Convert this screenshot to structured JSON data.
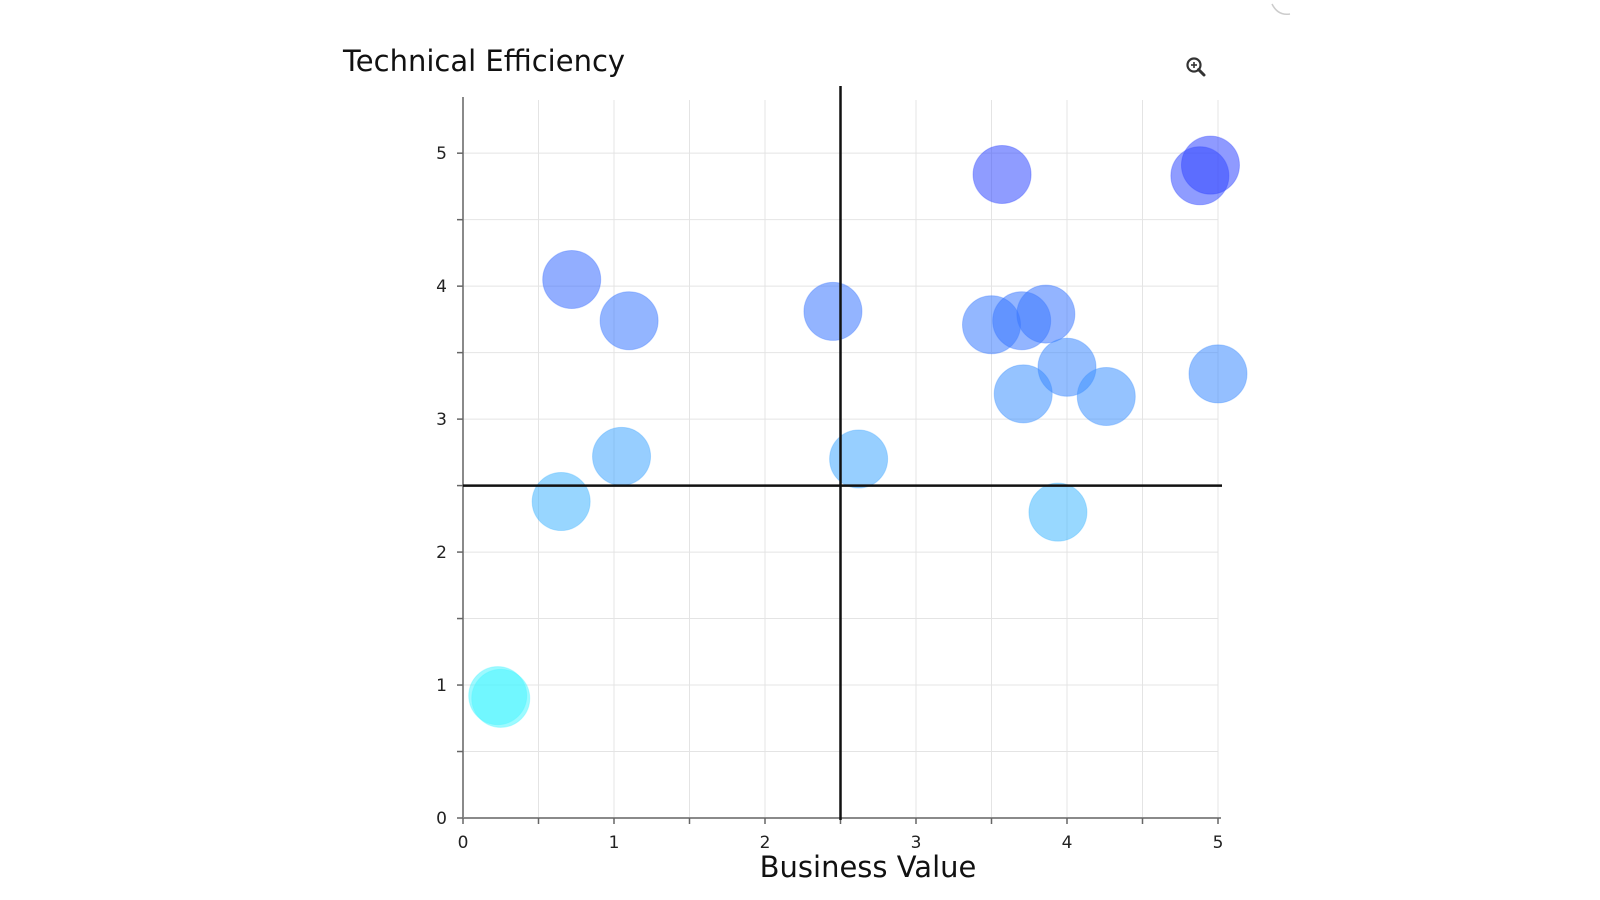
{
  "chart_data": {
    "type": "scatter",
    "title": "Technical Efficiency",
    "xlabel": "Business Value",
    "ylabel": "",
    "xlim": [
      0,
      5
    ],
    "ylim": [
      0,
      5.4
    ],
    "x_ticks": [
      "0",
      "1",
      "2",
      "3",
      "4",
      "5"
    ],
    "y_ticks": [
      "0",
      "1",
      "2",
      "3",
      "4",
      "5"
    ],
    "grid": true,
    "reference_lines": {
      "x": 2.5,
      "y": 2.5
    },
    "color_scale": {
      "low": "#4df5ff",
      "high": "#3347ff"
    },
    "points": [
      {
        "x": 0.23,
        "y": 0.92
      },
      {
        "x": 0.25,
        "y": 0.9
      },
      {
        "x": 0.65,
        "y": 2.38
      },
      {
        "x": 1.05,
        "y": 2.72
      },
      {
        "x": 0.72,
        "y": 4.05
      },
      {
        "x": 1.1,
        "y": 3.74
      },
      {
        "x": 2.45,
        "y": 3.81
      },
      {
        "x": 2.62,
        "y": 2.7
      },
      {
        "x": 3.57,
        "y": 4.84
      },
      {
        "x": 3.5,
        "y": 3.71
      },
      {
        "x": 3.7,
        "y": 3.74
      },
      {
        "x": 3.86,
        "y": 3.79
      },
      {
        "x": 3.71,
        "y": 3.19
      },
      {
        "x": 4.0,
        "y": 3.39
      },
      {
        "x": 4.26,
        "y": 3.17
      },
      {
        "x": 3.94,
        "y": 2.3
      },
      {
        "x": 4.88,
        "y": 4.83
      },
      {
        "x": 4.95,
        "y": 4.91
      },
      {
        "x": 5.0,
        "y": 3.34
      }
    ]
  },
  "toolbar": {
    "zoom_icon": "zoom-in-icon"
  }
}
